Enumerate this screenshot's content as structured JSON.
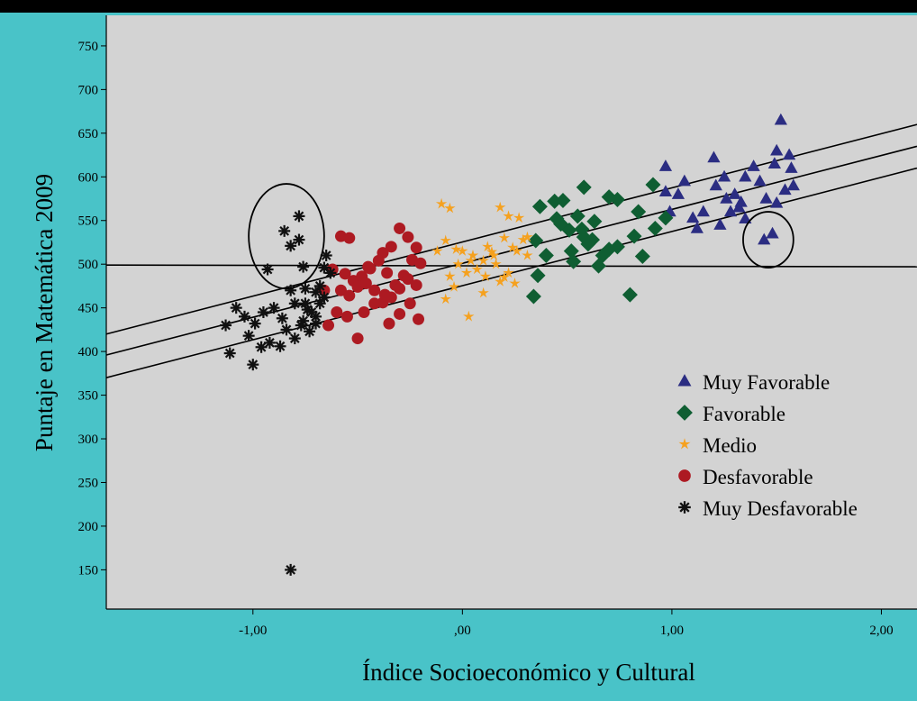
{
  "chart_data": {
    "type": "scatter",
    "xlabel": "Índice Socioeconómico y Cultural",
    "ylabel": "Puntaje en Matemática 2009",
    "xlim": [
      -1.7,
      2.17
    ],
    "ylim": [
      105,
      785
    ],
    "x_ticks": [
      -1,
      0,
      1,
      2
    ],
    "x_tick_labels": [
      "-1,00",
      ",00",
      "1,00",
      "2,00"
    ],
    "y_ticks": [
      150,
      200,
      250,
      300,
      350,
      400,
      450,
      500,
      550,
      600,
      650,
      700,
      750
    ],
    "y_tick_labels": [
      "150",
      "200",
      "250",
      "300",
      "350",
      "400",
      "450",
      "500",
      "550",
      "600",
      "650",
      "700",
      "750"
    ],
    "legend_position": "lower-right",
    "grid": false,
    "colors": {
      "page": "#49c3c8",
      "plot_bg": "#d3d3d3",
      "muy_favorable": "#2b2d82",
      "favorable": "#0f5e32",
      "medio": "#f5a11f",
      "desfavorable": "#ad1a22",
      "muy_desfavorable": "#111111",
      "lines": "#000000"
    },
    "series": [
      {
        "name": "Muy Favorable",
        "marker": "triangle",
        "points": [
          [
            0.97,
            612
          ],
          [
            1.06,
            595
          ],
          [
            0.97,
            583
          ],
          [
            1.15,
            560
          ],
          [
            1.12,
            541
          ],
          [
            1.21,
            590
          ],
          [
            1.25,
            600
          ],
          [
            1.3,
            580
          ],
          [
            1.32,
            565
          ],
          [
            1.35,
            552
          ],
          [
            1.39,
            612
          ],
          [
            1.45,
            575
          ],
          [
            1.49,
            615
          ],
          [
            1.5,
            630
          ],
          [
            1.52,
            665
          ],
          [
            1.56,
            625
          ],
          [
            1.57,
            610
          ],
          [
            1.58,
            590
          ],
          [
            1.54,
            585
          ],
          [
            1.44,
            528
          ],
          [
            1.48,
            535
          ],
          [
            1.33,
            571
          ],
          [
            1.2,
            622
          ],
          [
            1.28,
            560
          ],
          [
            1.1,
            553
          ],
          [
            1.03,
            580
          ],
          [
            1.23,
            545
          ],
          [
            1.42,
            595
          ],
          [
            1.5,
            570
          ],
          [
            1.35,
            600
          ],
          [
            1.26,
            575
          ],
          [
            0.99,
            560
          ]
        ]
      },
      {
        "name": "Favorable",
        "marker": "diamond",
        "points": [
          [
            0.37,
            566
          ],
          [
            0.44,
            572
          ],
          [
            0.48,
            573
          ],
          [
            0.58,
            588
          ],
          [
            0.7,
            577
          ],
          [
            0.74,
            574
          ],
          [
            0.84,
            560
          ],
          [
            0.91,
            591
          ],
          [
            0.92,
            541
          ],
          [
            0.97,
            553
          ],
          [
            0.35,
            527
          ],
          [
            0.4,
            510
          ],
          [
            0.47,
            546
          ],
          [
            0.51,
            539
          ],
          [
            0.55,
            555
          ],
          [
            0.58,
            531
          ],
          [
            0.6,
            523
          ],
          [
            0.63,
            549
          ],
          [
            0.67,
            510
          ],
          [
            0.53,
            503
          ],
          [
            0.65,
            498
          ],
          [
            0.7,
            517
          ],
          [
            0.82,
            532
          ],
          [
            0.86,
            509
          ],
          [
            0.34,
            463
          ],
          [
            0.8,
            465
          ],
          [
            0.36,
            487
          ],
          [
            0.57,
            540
          ],
          [
            0.62,
            528
          ],
          [
            0.45,
            552
          ],
          [
            0.52,
            515
          ],
          [
            0.74,
            520
          ]
        ]
      },
      {
        "name": "Medio",
        "marker": "star",
        "points": [
          [
            -0.1,
            569
          ],
          [
            -0.06,
            564
          ],
          [
            -0.08,
            527
          ],
          [
            -0.12,
            515
          ],
          [
            -0.03,
            517
          ],
          [
            0.0,
            515
          ],
          [
            0.04,
            504
          ],
          [
            0.07,
            494
          ],
          [
            0.1,
            504
          ],
          [
            0.12,
            520
          ],
          [
            0.15,
            510
          ],
          [
            0.18,
            565
          ],
          [
            0.2,
            530
          ],
          [
            0.22,
            555
          ],
          [
            0.24,
            519
          ],
          [
            0.27,
            553
          ],
          [
            0.29,
            528
          ],
          [
            0.31,
            510
          ],
          [
            -0.06,
            486
          ],
          [
            -0.02,
            500
          ],
          [
            0.02,
            490
          ],
          [
            0.05,
            510
          ],
          [
            0.11,
            486
          ],
          [
            0.14,
            514
          ],
          [
            0.18,
            480
          ],
          [
            0.22,
            490
          ],
          [
            0.25,
            478
          ],
          [
            0.1,
            467
          ],
          [
            -0.08,
            460
          ],
          [
            0.03,
            440
          ],
          [
            0.2,
            485
          ],
          [
            0.26,
            515
          ],
          [
            -0.04,
            474
          ],
          [
            0.16,
            500
          ],
          [
            0.31,
            531
          ]
        ]
      },
      {
        "name": "Desfavorable",
        "marker": "circle",
        "points": [
          [
            -0.58,
            532
          ],
          [
            -0.54,
            530
          ],
          [
            -0.38,
            513
          ],
          [
            -0.34,
            520
          ],
          [
            -0.3,
            541
          ],
          [
            -0.26,
            531
          ],
          [
            -0.22,
            519
          ],
          [
            -0.62,
            494
          ],
          [
            -0.56,
            489
          ],
          [
            -0.52,
            481
          ],
          [
            -0.48,
            486
          ],
          [
            -0.44,
            495
          ],
          [
            -0.4,
            504
          ],
          [
            -0.36,
            490
          ],
          [
            -0.32,
            476
          ],
          [
            -0.28,
            487
          ],
          [
            -0.24,
            505
          ],
          [
            -0.2,
            501
          ],
          [
            -0.58,
            470
          ],
          [
            -0.54,
            464
          ],
          [
            -0.5,
            474
          ],
          [
            -0.46,
            478
          ],
          [
            -0.42,
            470
          ],
          [
            -0.38,
            456
          ],
          [
            -0.34,
            462
          ],
          [
            -0.3,
            472
          ],
          [
            -0.26,
            483
          ],
          [
            -0.22,
            476
          ],
          [
            -0.6,
            445
          ],
          [
            -0.55,
            440
          ],
          [
            -0.47,
            445
          ],
          [
            -0.42,
            455
          ],
          [
            -0.37,
            465
          ],
          [
            -0.3,
            443
          ],
          [
            -0.25,
            455
          ],
          [
            -0.21,
            437
          ],
          [
            -0.5,
            415
          ],
          [
            -0.64,
            430
          ],
          [
            -0.35,
            432
          ],
          [
            -0.45,
            497
          ],
          [
            -0.66,
            470
          ]
        ]
      },
      {
        "name": "Muy Desfavorable",
        "marker": "asterisk",
        "points": [
          [
            -0.85,
            538
          ],
          [
            -0.78,
            555
          ],
          [
            -0.78,
            528
          ],
          [
            -0.82,
            521
          ],
          [
            -0.93,
            494
          ],
          [
            -0.76,
            497
          ],
          [
            -0.66,
            496
          ],
          [
            -0.82,
            470
          ],
          [
            -0.75,
            472
          ],
          [
            -0.7,
            468
          ],
          [
            -0.8,
            455
          ],
          [
            -0.74,
            448
          ],
          [
            -0.7,
            440
          ],
          [
            -0.77,
            430
          ],
          [
            -0.73,
            423
          ],
          [
            -0.86,
            438
          ],
          [
            -0.9,
            450
          ],
          [
            -0.95,
            445
          ],
          [
            -0.99,
            432
          ],
          [
            -1.04,
            440
          ],
          [
            -1.08,
            450
          ],
          [
            -1.13,
            430
          ],
          [
            -1.11,
            398
          ],
          [
            -1.0,
            385
          ],
          [
            -1.02,
            418
          ],
          [
            -0.96,
            405
          ],
          [
            -0.92,
            410
          ],
          [
            -0.87,
            406
          ],
          [
            -0.84,
            425
          ],
          [
            -0.8,
            415
          ],
          [
            -0.76,
            435
          ],
          [
            -0.72,
            445
          ],
          [
            -0.68,
            475
          ],
          [
            -0.65,
            510
          ],
          [
            -0.82,
            150
          ],
          [
            -0.63,
            490
          ],
          [
            -0.66,
            462
          ],
          [
            -0.75,
            455
          ],
          [
            -0.7,
            432
          ],
          [
            -0.68,
            455
          ]
        ]
      }
    ],
    "reference_lines": [
      {
        "from": [
          -1.7,
          420
        ],
        "to": [
          2.17,
          660
        ]
      },
      {
        "from": [
          -1.7,
          396
        ],
        "to": [
          2.17,
          635
        ]
      },
      {
        "from": [
          -1.7,
          370
        ],
        "to": [
          2.17,
          610
        ]
      },
      {
        "from": [
          -1.7,
          499
        ],
        "to": [
          2.17,
          497
        ]
      }
    ],
    "highlight_ellipses": [
      {
        "center": [
          -0.84,
          532
        ],
        "rx": 0.18,
        "ry": 60
      },
      {
        "center": [
          1.46,
          528
        ],
        "rx": 0.12,
        "ry": 32
      }
    ]
  }
}
